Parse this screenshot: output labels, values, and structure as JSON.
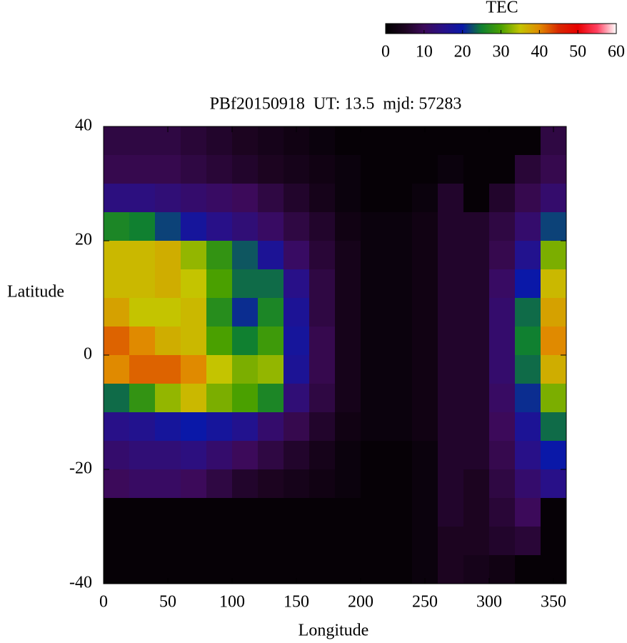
{
  "chart_data": {
    "type": "heatmap",
    "title": "PBf20150918  UT: 13.5  mjd: 57283",
    "xlabel": "Longitude",
    "ylabel": "Latitude",
    "ztitle": "TEC",
    "xlim": [
      0,
      360
    ],
    "ylim": [
      -40,
      40
    ],
    "xticks": [
      0,
      50,
      100,
      150,
      200,
      250,
      300,
      350
    ],
    "yticks": [
      -40,
      -20,
      0,
      20,
      40
    ],
    "zlim": [
      0,
      60
    ],
    "zticks": [
      0,
      10,
      20,
      30,
      40,
      50,
      60
    ],
    "colors": [
      "#000000",
      "#1c0420",
      "#3c0a5a",
      "#281088",
      "#0a18a8",
      "#108030",
      "#4aa000",
      "#c4c400",
      "#e08a00",
      "#d82800",
      "#e80000",
      "#ff4060",
      "#ffffff"
    ],
    "x": [
      10,
      30,
      50,
      70,
      90,
      110,
      130,
      150,
      170,
      190,
      210,
      230,
      250,
      270,
      290,
      310,
      330,
      350
    ],
    "y": [
      37.5,
      32.5,
      27.5,
      22.5,
      17.5,
      12.5,
      7.5,
      2.5,
      -2.5,
      -7.5,
      -12.5,
      -17.5,
      -22.5,
      -27.5,
      -32.5,
      -37.5
    ],
    "z": [
      [
        8,
        8,
        8,
        7,
        6,
        5,
        4,
        3,
        2,
        1,
        1,
        1,
        1,
        1,
        1,
        1,
        1,
        8
      ],
      [
        9,
        9,
        9,
        8,
        7,
        6,
        5,
        4,
        3,
        2,
        1,
        1,
        1,
        2,
        1,
        1,
        7,
        9
      ],
      [
        14,
        14,
        13,
        12,
        11,
        10,
        8,
        6,
        4,
        2,
        1,
        1,
        2,
        6,
        1,
        6,
        9,
        12
      ],
      [
        26,
        25,
        22,
        18,
        15,
        13,
        11,
        8,
        6,
        3,
        2,
        2,
        3,
        6,
        6,
        8,
        12,
        22
      ],
      [
        36,
        36,
        37,
        33,
        28,
        23,
        17,
        11,
        7,
        4,
        2,
        2,
        3,
        6,
        6,
        9,
        16,
        32
      ],
      [
        36,
        36,
        37,
        35,
        30,
        24,
        24,
        15,
        8,
        4,
        2,
        2,
        3,
        6,
        6,
        11,
        20,
        36
      ],
      [
        38,
        35,
        35,
        36,
        27,
        21,
        26,
        17,
        8,
        4,
        2,
        2,
        3,
        6,
        6,
        12,
        24,
        38
      ],
      [
        42,
        40,
        37,
        36,
        30,
        25,
        29,
        18,
        9,
        4,
        2,
        2,
        3,
        6,
        6,
        12,
        25,
        40
      ],
      [
        40,
        42,
        42,
        40,
        35,
        32,
        33,
        17,
        9,
        4,
        2,
        2,
        3,
        6,
        6,
        12,
        24,
        37
      ],
      [
        24,
        28,
        33,
        36,
        32,
        30,
        26,
        13,
        8,
        4,
        2,
        2,
        3,
        6,
        6,
        11,
        21,
        32
      ],
      [
        15,
        16,
        18,
        20,
        18,
        16,
        12,
        9,
        6,
        3,
        2,
        2,
        3,
        6,
        6,
        10,
        17,
        24
      ],
      [
        12,
        13,
        13,
        14,
        12,
        10,
        8,
        6,
        4,
        2,
        1,
        1,
        2,
        6,
        6,
        9,
        15,
        20
      ],
      [
        10,
        11,
        11,
        10,
        8,
        6,
        5,
        4,
        3,
        2,
        1,
        1,
        2,
        6,
        5,
        8,
        12,
        15
      ],
      [
        1,
        1,
        1,
        1,
        1,
        1,
        1,
        1,
        1,
        1,
        1,
        1,
        2,
        6,
        5,
        7,
        10,
        1
      ],
      [
        1,
        1,
        1,
        1,
        1,
        1,
        1,
        1,
        1,
        1,
        1,
        1,
        2,
        5,
        5,
        6,
        7,
        1
      ],
      [
        1,
        1,
        1,
        1,
        1,
        1,
        1,
        1,
        1,
        1,
        1,
        1,
        2,
        5,
        4,
        3,
        1,
        1
      ]
    ]
  }
}
